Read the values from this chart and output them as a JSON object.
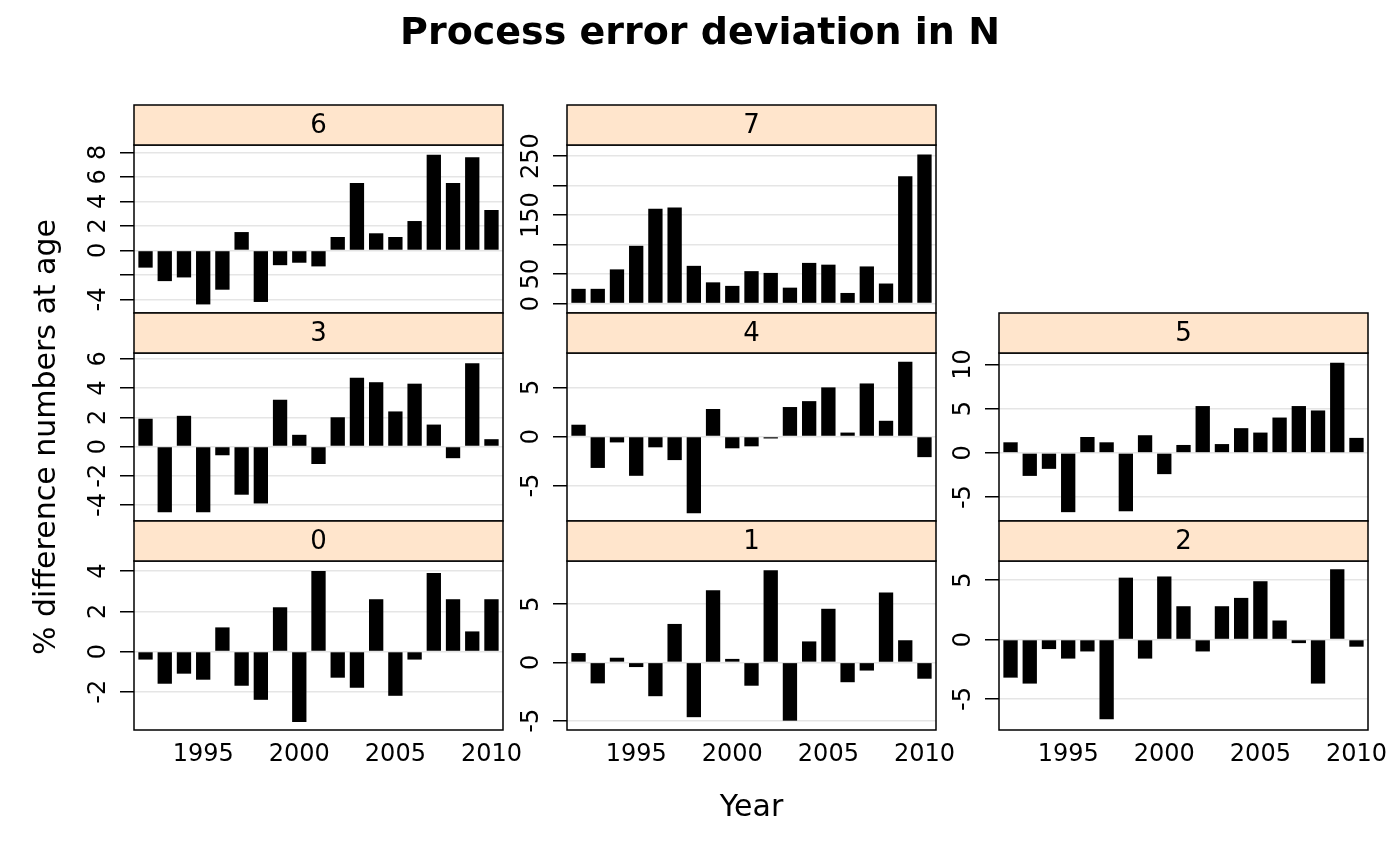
{
  "chart_data": [
    {
      "type": "bar",
      "title": "6",
      "annotations": [
        "Process error deviation in N"
      ],
      "x": [
        1992,
        1993,
        1994,
        1995,
        1996,
        1997,
        1998,
        1999,
        2000,
        2001,
        2002,
        2003,
        2004,
        2005,
        2006,
        2007,
        2008,
        2009,
        2010
      ],
      "values": [
        -1.4,
        -2.5,
        -2.2,
        -4.4,
        -3.2,
        1.5,
        -4.2,
        -1.2,
        -1.0,
        -1.3,
        1.1,
        5.5,
        1.4,
        1.1,
        2.4,
        7.8,
        5.5,
        7.6,
        3.3
      ],
      "color": "#000000",
      "xlim": [
        1991.4,
        2010.6
      ],
      "ylim": [
        -5.1,
        8.6
      ],
      "yticks": [
        -4,
        {
          "value": -2,
          "label": null
        },
        0,
        2,
        4,
        6,
        8
      ],
      "grid": "y",
      "tick_labels": "y"
    },
    {
      "type": "bar",
      "title": "7",
      "x": [
        1992,
        1993,
        1994,
        1995,
        1996,
        1997,
        1998,
        1999,
        2000,
        2001,
        2002,
        2003,
        2004,
        2005,
        2006,
        2007,
        2008,
        2009,
        2010
      ],
      "values": [
        25,
        25,
        58,
        98,
        161,
        163,
        64,
        36,
        30,
        55,
        52,
        27,
        69,
        66,
        18,
        63,
        34,
        216,
        253
      ],
      "color": "#000000",
      "xlim": [
        1991.4,
        2010.6
      ],
      "ylim": [
        -16,
        269
      ],
      "yticks": [
        0,
        50,
        {
          "value": 100,
          "label": null
        },
        150,
        {
          "value": 200,
          "label": null
        },
        250
      ],
      "grid": "y",
      "tick_labels": "y"
    },
    {
      "type": "bar",
      "title": "3",
      "ylabel": "% difference numbers at age",
      "x": [
        1992,
        1993,
        1994,
        1995,
        1996,
        1997,
        1998,
        1999,
        2000,
        2001,
        2002,
        2003,
        2004,
        2005,
        2006,
        2007,
        2008,
        2009,
        2010
      ],
      "values": [
        1.9,
        -4.5,
        2.1,
        -4.5,
        -0.6,
        -3.3,
        -3.9,
        3.2,
        0.8,
        -1.2,
        2.0,
        4.7,
        4.4,
        2.4,
        4.3,
        1.5,
        -0.8,
        5.7,
        0.5
      ],
      "color": "#000000",
      "xlim": [
        1991.4,
        2010.6
      ],
      "ylim": [
        -5.1,
        6.4
      ],
      "yticks": [
        -4,
        -2,
        0,
        2,
        4,
        6
      ],
      "grid": "y",
      "tick_labels": "y"
    },
    {
      "type": "bar",
      "title": "4",
      "x": [
        1992,
        1993,
        1994,
        1995,
        1996,
        1997,
        1998,
        1999,
        2000,
        2001,
        2002,
        2003,
        2004,
        2005,
        2006,
        2007,
        2008,
        2009,
        2010
      ],
      "values": [
        1.2,
        -3.2,
        -0.6,
        -4.0,
        -1.1,
        -2.4,
        -7.8,
        2.8,
        -1.2,
        -1.0,
        -0.2,
        3.0,
        3.6,
        5.0,
        0.4,
        5.4,
        1.6,
        7.6,
        -2.1
      ],
      "color": "#000000",
      "xlim": [
        1991.4,
        2010.6
      ],
      "ylim": [
        -8.6,
        8.5
      ],
      "yticks": [
        -5,
        0,
        5
      ],
      "grid": "y",
      "tick_labels": "y"
    },
    {
      "type": "bar",
      "title": "5",
      "x": [
        1992,
        1993,
        1994,
        1995,
        1996,
        1997,
        1998,
        1999,
        2000,
        2001,
        2002,
        2003,
        2004,
        2005,
        2006,
        2007,
        2008,
        2009,
        2010
      ],
      "values": [
        1.2,
        -2.6,
        -1.8,
        -6.7,
        1.8,
        1.2,
        -6.6,
        2.0,
        -2.4,
        0.9,
        5.3,
        1.0,
        2.8,
        2.3,
        4.0,
        5.3,
        4.8,
        10.2,
        1.7
      ],
      "color": "#000000",
      "xlim": [
        1991.4,
        2010.6
      ],
      "ylim": [
        -7.7,
        11.3
      ],
      "yticks": [
        -5,
        0,
        5,
        10
      ],
      "grid": "y",
      "tick_labels": "y"
    },
    {
      "type": "bar",
      "title": "0",
      "x": [
        1992,
        1993,
        1994,
        1995,
        1996,
        1997,
        1998,
        1999,
        2000,
        2001,
        2002,
        2003,
        2004,
        2005,
        2006,
        2007,
        2008,
        2009,
        2010
      ],
      "values": [
        -0.4,
        -1.6,
        -1.1,
        -1.4,
        1.2,
        -1.7,
        -2.4,
        2.2,
        -3.5,
        4.0,
        -1.3,
        -1.8,
        2.6,
        -2.2,
        -0.4,
        3.9,
        2.6,
        1.0,
        2.6
      ],
      "color": "#000000",
      "xlim": [
        1991.4,
        2010.6
      ],
      "xticks": [
        1995,
        2000,
        2005,
        2010
      ],
      "ylim": [
        -3.9,
        4.5
      ],
      "yticks": [
        -2,
        0,
        2,
        4
      ],
      "grid": "y"
    },
    {
      "type": "bar",
      "title": "1",
      "xlabel": "Year",
      "x": [
        1992,
        1993,
        1994,
        1995,
        1996,
        1997,
        1998,
        1999,
        2000,
        2001,
        2002,
        2003,
        2004,
        2005,
        2006,
        2007,
        2008,
        2009,
        2010
      ],
      "values": [
        0.8,
        -1.8,
        0.4,
        -0.4,
        -2.9,
        3.3,
        -4.7,
        6.2,
        0.3,
        -2.0,
        7.9,
        -5.0,
        1.8,
        4.6,
        -1.7,
        -0.7,
        6.0,
        1.9,
        -1.4
      ],
      "color": "#000000",
      "xlim": [
        1991.4,
        2010.6
      ],
      "xticks": [
        1995,
        2000,
        2005,
        2010
      ],
      "ylim": [
        -5.8,
        8.7
      ],
      "yticks": [
        -5,
        0,
        5
      ],
      "grid": "y"
    },
    {
      "type": "bar",
      "title": "2",
      "x": [
        1992,
        1993,
        1994,
        1995,
        1996,
        1997,
        1998,
        1999,
        2000,
        2001,
        2002,
        2003,
        2004,
        2005,
        2006,
        2007,
        2008,
        2009,
        2010
      ],
      "values": [
        -3.2,
        -3.7,
        -0.8,
        -1.6,
        -1.0,
        -6.7,
        5.2,
        -1.6,
        5.3,
        2.8,
        -1.0,
        2.8,
        3.5,
        4.9,
        1.6,
        -0.3,
        -3.7,
        5.9,
        -0.6
      ],
      "color": "#000000",
      "xlim": [
        1991.4,
        2010.6
      ],
      "xticks": [
        1995,
        2000,
        2005,
        2010
      ],
      "ylim": [
        -7.6,
        6.6
      ],
      "yticks": [
        -5,
        0,
        5
      ],
      "grid": "y"
    }
  ]
}
